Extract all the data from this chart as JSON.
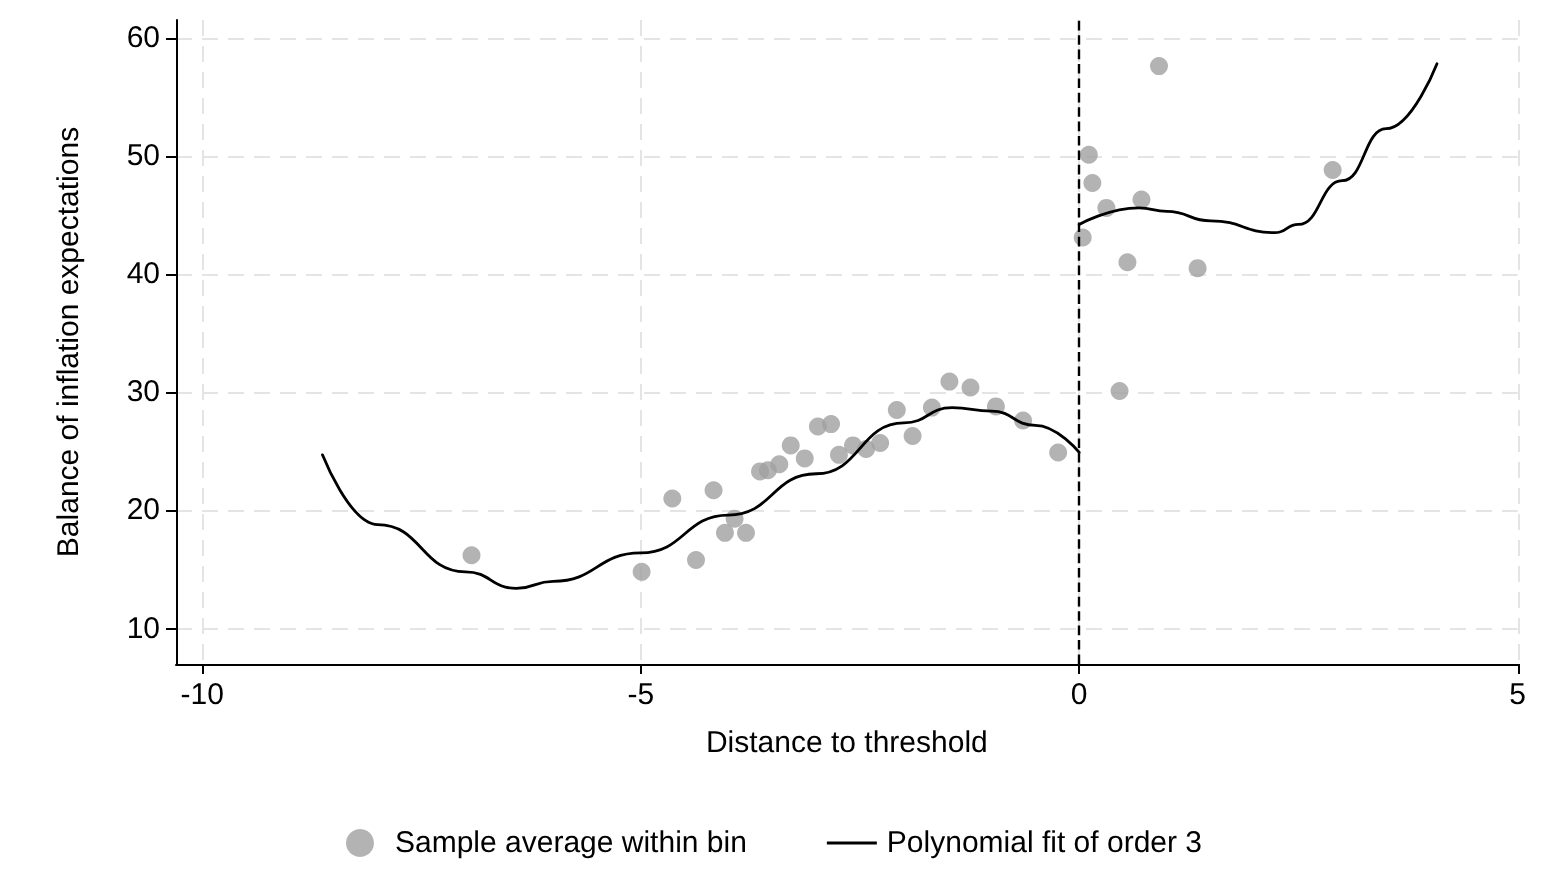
{
  "chart_data": {
    "type": "scatter",
    "xlabel": "Distance to threshold",
    "ylabel": "Balance of inflation expectations",
    "xlim": [
      -10.3,
      5
    ],
    "ylim": [
      7,
      61.5
    ],
    "xticks": [
      -10,
      -5,
      0,
      5
    ],
    "yticks": [
      10,
      20,
      30,
      40,
      50,
      60
    ],
    "grid": true,
    "legend": "bottom",
    "ref_lines": [
      {
        "axis": "x",
        "value": 0,
        "color": "#000000",
        "line_style": "dashed"
      }
    ],
    "series": [
      {
        "name": "Sample average within bin",
        "marker": "circle",
        "color": "#a0a0a0",
        "x": [
          -6.93,
          -4.99,
          -4.64,
          -4.37,
          -4.17,
          -4.04,
          -3.93,
          -3.8,
          -3.64,
          -3.55,
          -3.42,
          -3.29,
          -3.13,
          -2.98,
          -2.83,
          -2.74,
          -2.58,
          -2.43,
          -2.27,
          -2.08,
          -1.9,
          -1.68,
          -1.48,
          -1.24,
          -0.95,
          -0.64,
          -0.24,
          0.04,
          0.11,
          0.15,
          0.31,
          0.46,
          0.55,
          0.71,
          0.91,
          1.35,
          2.89
        ],
        "values": [
          16.2,
          14.8,
          21.0,
          15.8,
          21.7,
          18.1,
          19.3,
          18.1,
          23.3,
          23.4,
          23.9,
          25.5,
          24.4,
          27.1,
          27.3,
          24.7,
          25.5,
          25.2,
          25.7,
          28.5,
          26.3,
          28.7,
          30.9,
          30.4,
          28.8,
          27.6,
          24.9,
          43.1,
          50.1,
          47.7,
          45.6,
          30.1,
          41.0,
          46.3,
          57.6,
          40.5,
          48.8
        ]
      },
      {
        "name": "Polynomial fit of order 3",
        "type": "line",
        "marker": "none",
        "line_style": "solid",
        "color": "#000000",
        "x": [
          -8.63,
          -8,
          -7,
          -6.42,
          -6,
          -5,
          -4,
          -3,
          -2,
          -1.45,
          -1,
          -0.5,
          0,
          null,
          0,
          0.68,
          1,
          1.5,
          2.23,
          2.5,
          3,
          3.5,
          4.08
        ],
        "values": [
          24.7,
          18.8,
          14.8,
          13.4,
          14.0,
          16.4,
          19.6,
          23.1,
          27.4,
          28.7,
          28.4,
          27.2,
          24.9,
          null,
          44.2,
          45.6,
          45.3,
          44.5,
          43.5,
          44.2,
          47.9,
          52.3,
          57.8
        ]
      }
    ]
  }
}
